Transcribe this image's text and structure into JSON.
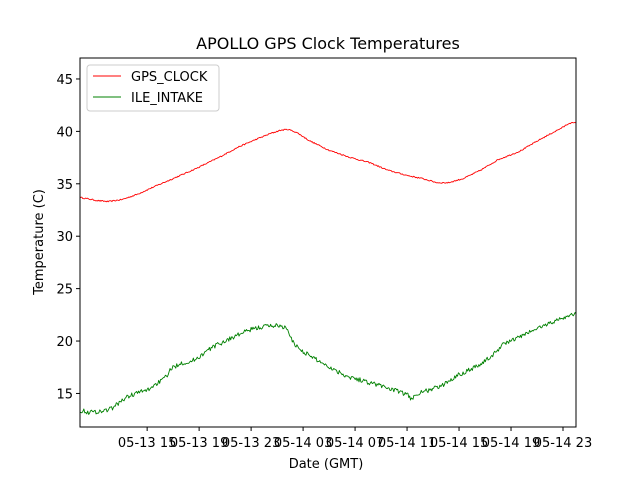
{
  "chart_data": {
    "type": "line",
    "title": "APOLLO GPS Clock Temperatures",
    "xlabel": "Date (GMT)",
    "ylabel": "Temperature (C)",
    "xlim": [
      "05-13 09:50",
      "05-15 00:00"
    ],
    "ylim": [
      11.8,
      47
    ],
    "x_ticks": [
      {
        "at": "05-13 15:00",
        "label": "05-13 15"
      },
      {
        "at": "05-13 19:00",
        "label": "05-13 19"
      },
      {
        "at": "05-13 23:00",
        "label": "05-13 23"
      },
      {
        "at": "05-14 03:00",
        "label": "05-14 03"
      },
      {
        "at": "05-14 07:00",
        "label": "05-14 07"
      },
      {
        "at": "05-14 11:00",
        "label": "05-14 11"
      },
      {
        "at": "05-14 15:00",
        "label": "05-14 15"
      },
      {
        "at": "05-14 19:00",
        "label": "05-14 19"
      },
      {
        "at": "05-14 23:00",
        "label": "05-14 23"
      }
    ],
    "y_ticks": [
      15,
      20,
      25,
      30,
      35,
      40,
      45
    ],
    "legend": "top-left",
    "grid": false,
    "series": [
      {
        "name": "GPS_CLOCK",
        "color": "#ff0000",
        "points": [
          [
            "05-13 09:50",
            33.7
          ],
          [
            "05-13 11:10",
            33.4
          ],
          [
            "05-13 12:00",
            33.3
          ],
          [
            "05-13 13:05",
            33.5
          ],
          [
            "05-13 14:15",
            34.0
          ],
          [
            "05-13 15:30",
            34.7
          ],
          [
            "05-13 17:00",
            35.5
          ],
          [
            "05-13 18:40",
            36.4
          ],
          [
            "05-13 20:30",
            37.5
          ],
          [
            "05-13 22:00",
            38.5
          ],
          [
            "05-13 23:30",
            39.3
          ],
          [
            "05-14 00:30",
            39.8
          ],
          [
            "05-14 01:15",
            40.1
          ],
          [
            "05-14 01:50",
            40.2
          ],
          [
            "05-14 02:30",
            39.9
          ],
          [
            "05-14 03:30",
            39.1
          ],
          [
            "05-14 05:00",
            38.2
          ],
          [
            "05-14 06:40",
            37.5
          ],
          [
            "05-14 08:10",
            37.0
          ],
          [
            "05-14 09:30",
            36.3
          ],
          [
            "05-14 11:00",
            35.8
          ],
          [
            "05-14 12:10",
            35.5
          ],
          [
            "05-14 13:20",
            35.1
          ],
          [
            "05-14 14:10",
            35.1
          ],
          [
            "05-14 15:20",
            35.5
          ],
          [
            "05-14 16:40",
            36.3
          ],
          [
            "05-14 18:00",
            37.3
          ],
          [
            "05-14 19:40",
            38.1
          ],
          [
            "05-14 21:20",
            39.3
          ],
          [
            "05-14 23:00",
            40.4
          ],
          [
            "05-14 23:30",
            40.8
          ],
          [
            "05-15 00:00",
            40.8
          ]
        ]
      },
      {
        "name": "ILE_INTAKE",
        "color": "#008000",
        "points": [
          [
            "05-13 09:50",
            13.4
          ],
          [
            "05-13 10:30",
            13.2
          ],
          [
            "05-13 11:30",
            13.3
          ],
          [
            "05-13 12:20",
            13.6
          ],
          [
            "05-13 13:00",
            14.3
          ],
          [
            "05-13 13:40",
            14.8
          ],
          [
            "05-13 14:20",
            15.1
          ],
          [
            "05-13 15:00",
            15.3
          ],
          [
            "05-13 15:40",
            15.9
          ],
          [
            "05-13 16:20",
            16.4
          ],
          [
            "05-13 16:50",
            17.3
          ],
          [
            "05-13 17:30",
            17.9
          ],
          [
            "05-13 18:20",
            18.0
          ],
          [
            "05-13 19:00",
            18.5
          ],
          [
            "05-13 20:00",
            19.4
          ],
          [
            "05-13 21:00",
            20.0
          ],
          [
            "05-13 22:00",
            20.6
          ],
          [
            "05-13 23:00",
            21.1
          ],
          [
            "05-14 00:00",
            21.4
          ],
          [
            "05-14 01:00",
            21.5
          ],
          [
            "05-14 01:40",
            21.3
          ],
          [
            "05-14 02:10",
            20.0
          ],
          [
            "05-14 02:40",
            19.3
          ],
          [
            "05-14 03:30",
            18.6
          ],
          [
            "05-14 04:30",
            17.9
          ],
          [
            "05-14 05:30",
            17.2
          ],
          [
            "05-14 06:30",
            16.6
          ],
          [
            "05-14 07:40",
            16.2
          ],
          [
            "05-14 08:50",
            15.8
          ],
          [
            "05-14 09:50",
            15.4
          ],
          [
            "05-14 10:30",
            15.1
          ],
          [
            "05-14 11:00",
            14.9
          ],
          [
            "05-14 11:20",
            14.4
          ],
          [
            "05-14 11:35",
            14.9
          ],
          [
            "05-14 12:10",
            15.1
          ],
          [
            "05-14 12:50",
            15.4
          ],
          [
            "05-14 13:40",
            15.7
          ],
          [
            "05-14 14:40",
            16.6
          ],
          [
            "05-14 15:40",
            17.2
          ],
          [
            "05-14 16:40",
            17.8
          ],
          [
            "05-14 17:40",
            18.7
          ],
          [
            "05-14 18:20",
            19.7
          ],
          [
            "05-14 19:10",
            20.1
          ],
          [
            "05-14 20:00",
            20.6
          ],
          [
            "05-14 21:00",
            21.2
          ],
          [
            "05-14 22:10",
            21.8
          ],
          [
            "05-14 23:10",
            22.3
          ],
          [
            "05-15 00:00",
            22.6
          ]
        ]
      }
    ]
  }
}
